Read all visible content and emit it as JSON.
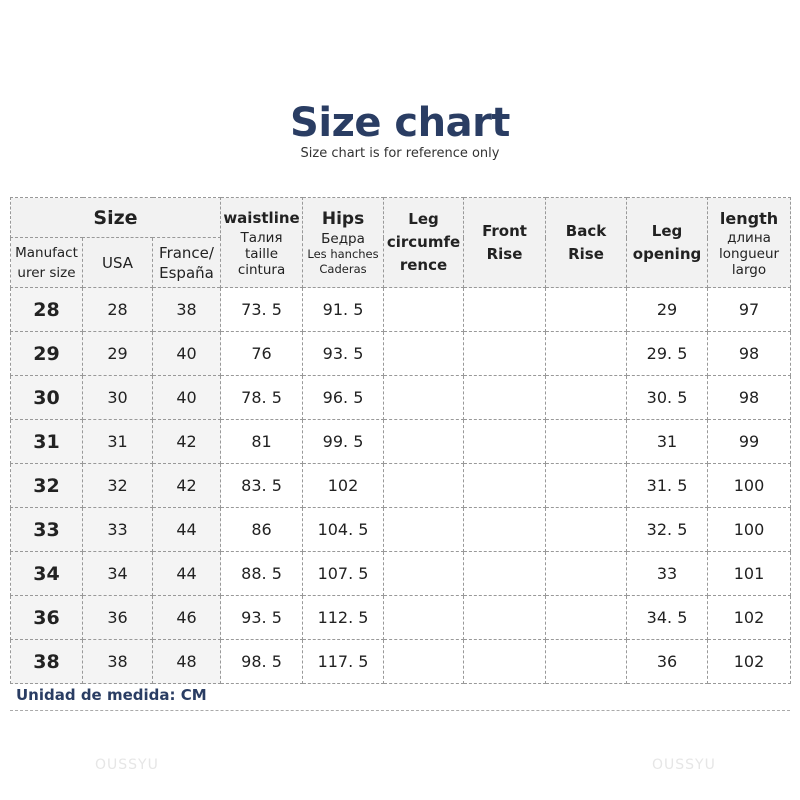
{
  "title": "Size chart",
  "subtitle": "Size chart is for reference only",
  "header": {
    "size": "Size",
    "manufacturer_size": [
      "Manufact",
      "urer size"
    ],
    "usa": "USA",
    "france_espana": [
      "France/",
      "España"
    ],
    "waistline": "waistline",
    "waistline_sub": [
      "Талия",
      "taille",
      "cintura"
    ],
    "hips": "Hips",
    "hips_sub": [
      "Бедра",
      "Les hanches",
      "Caderas"
    ],
    "leg_circumference": [
      "Leg",
      "circumfe",
      "rence"
    ],
    "front_rise": [
      "Front",
      "Rise"
    ],
    "back_rise": [
      "Back",
      "Rise"
    ],
    "leg_opening": [
      "Leg",
      "opening"
    ],
    "length": "length",
    "length_sub": [
      "длина",
      "longueur",
      "largo"
    ]
  },
  "rows": [
    [
      "28",
      "28",
      "38",
      "73. 5",
      "91. 5",
      "",
      "",
      "",
      "29",
      "97"
    ],
    [
      "29",
      "29",
      "40",
      "76",
      "93. 5",
      "",
      "",
      "",
      "29. 5",
      "98"
    ],
    [
      "30",
      "30",
      "40",
      "78. 5",
      "96. 5",
      "",
      "",
      "",
      "30. 5",
      "98"
    ],
    [
      "31",
      "31",
      "42",
      "81",
      "99. 5",
      "",
      "",
      "",
      "31",
      "99"
    ],
    [
      "32",
      "32",
      "42",
      "83. 5",
      "102",
      "",
      "",
      "",
      "31. 5",
      "100"
    ],
    [
      "33",
      "33",
      "44",
      "86",
      "104. 5",
      "",
      "",
      "",
      "32. 5",
      "100"
    ],
    [
      "34",
      "34",
      "44",
      "88. 5",
      "107. 5",
      "",
      "",
      "",
      "33",
      "101"
    ],
    [
      "36",
      "36",
      "46",
      "93. 5",
      "112. 5",
      "",
      "",
      "",
      "34. 5",
      "102"
    ],
    [
      "38",
      "38",
      "48",
      "98. 5",
      "117. 5",
      "",
      "",
      "",
      "36",
      "102"
    ]
  ],
  "unit_note": "Unidad de medida: CM",
  "watermark": "OUSSYU",
  "colors": {
    "title": "#2a3d63",
    "header_bg": "#f2f2f2"
  }
}
